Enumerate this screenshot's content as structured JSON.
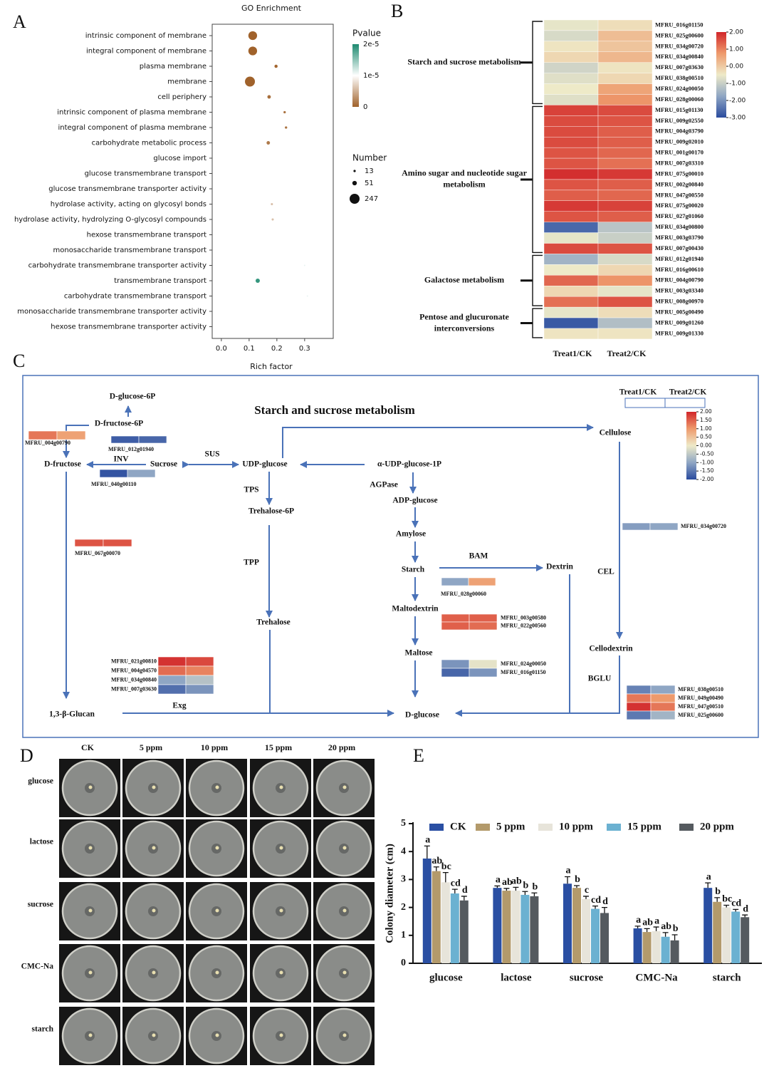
{
  "panel_labels": [
    "A",
    "B",
    "C",
    "D",
    "E"
  ],
  "chart_data": [
    {
      "type": "scatter",
      "title": "GO Enrichment",
      "x_label": "Rich factor",
      "categories": [
        "intrinsic component of membrane",
        "integral component of membrane",
        "plasma membrane",
        "membrane",
        "cell periphery",
        "intrinsic component of plasma membrane",
        "integral component of plasma membrane",
        "carbohydrate metabolic process",
        "glucose import",
        "glucose transmembrane transport",
        "glucose transmembrane transporter activity",
        "hydrolase activity, acting on glycosyl bonds",
        "hydrolase activity, hydrolyzing O-glycosyl compounds",
        "hexose transmembrane transport",
        "monosaccharide transmembrane transport",
        "carbohydrate transmembrane transporter activity",
        "transmembrane transport",
        "carbohydrate transmembrane transport",
        "monosaccharide transmembrane transporter activity",
        "hexose transmembrane transporter activity"
      ],
      "x": [
        0.113,
        0.113,
        0.197,
        0.103,
        0.172,
        0.228,
        0.233,
        0.169,
        0.369,
        0.364,
        0.344,
        0.182,
        0.185,
        0.323,
        0.318,
        0.3,
        0.131,
        0.31,
        0.323,
        0.323
      ],
      "size": [
        190,
        190,
        25,
        247,
        30,
        14,
        14,
        30,
        3,
        3,
        3,
        12,
        12,
        4,
        4,
        5,
        45,
        5,
        4,
        4
      ],
      "pvalue": [
        2e-08,
        2e-08,
        3e-07,
        1e-08,
        8e-07,
        1e-06,
        1e-06,
        1.5e-06,
        1e-05,
        1e-05,
        1e-05,
        6e-06,
        6e-06,
        1e-05,
        1e-05,
        1.1e-05,
        1.9e-05,
        1.1e-05,
        1e-05,
        1e-05
      ],
      "xlim": [
        -0.033,
        0.403
      ],
      "xticks": [
        {
          "value": 0,
          "label": "0.0"
        },
        0.1,
        0.2,
        0.3
      ],
      "color_legend": {
        "title": "Pvalue",
        "lim": [
          0,
          2e-05
        ],
        "colors": [
          "#a0622b",
          "#ffffff",
          "#1d8a70"
        ],
        "ticks": [
          {
            "value": 2e-05,
            "label": "2e-5"
          },
          {
            "value": 1e-05,
            "label": "1e-5"
          },
          0
        ]
      },
      "size_legend": {
        "title": "Number",
        "values": [
          13,
          51,
          247
        ]
      }
    },
    {
      "type": "heatmap",
      "columns": [
        "Treat1/CK",
        "Treat2/CK"
      ],
      "clim": [
        -3,
        2
      ],
      "colors": [
        "#2a4b9e",
        "#8fa6c4",
        "#eeeac8",
        "#ee9a6c",
        "#d1262a"
      ],
      "cticks": [
        {
          "value": 2,
          "label": "2.00"
        },
        {
          "value": 1,
          "label": "1.00"
        },
        {
          "value": 0,
          "label": "0.00"
        },
        {
          "value": -1,
          "label": "-1.00"
        },
        {
          "value": -2,
          "label": "-2.00"
        },
        {
          "value": -3,
          "label": "-3.00"
        }
      ],
      "groups": [
        {
          "name": [
            "Starch and sucrose metabolism"
          ],
          "genes": [
            {
              "label": "MFRU_016g01150",
              "values": [
                -0.6,
                -0.3
              ]
            },
            {
              "label": "MFRU_025g00600",
              "values": [
                -0.8,
                0.2
              ]
            },
            {
              "label": "MFRU_034g00720",
              "values": [
                -0.4,
                0.1
              ]
            },
            {
              "label": "MFRU_034g00840",
              "values": [
                -0.2,
                0.3
              ]
            },
            {
              "label": "MFRU_007g03630",
              "values": [
                -0.9,
                -0.4
              ]
            },
            {
              "label": "MFRU_038g00510",
              "values": [
                -0.7,
                -0.2
              ]
            },
            {
              "label": "MFRU_024g00050",
              "values": [
                -0.5,
                0.6
              ]
            },
            {
              "label": "MFRU_028g00060",
              "values": [
                -0.7,
                0.8
              ]
            }
          ]
        },
        {
          "name": [
            "Amino sugar and nucleotide sugar",
            "metabolism"
          ],
          "genes": [
            {
              "label": "MFRU_015g01130",
              "values": [
                1.7,
                1.6
              ]
            },
            {
              "label": "MFRU_009g02550",
              "values": [
                1.6,
                1.5
              ]
            },
            {
              "label": "MFRU_004g03790",
              "values": [
                1.6,
                1.4
              ]
            },
            {
              "label": "MFRU_009g02010",
              "values": [
                1.6,
                1.4
              ]
            },
            {
              "label": "MFRU_001g00170",
              "values": [
                1.5,
                1.3
              ]
            },
            {
              "label": "MFRU_007g03310",
              "values": [
                1.5,
                1.2
              ]
            },
            {
              "label": "MFRU_075g00010",
              "values": [
                1.9,
                1.8
              ]
            },
            {
              "label": "MFRU_002g00840",
              "values": [
                1.5,
                1.4
              ]
            },
            {
              "label": "MFRU_047g00550",
              "values": [
                1.4,
                1.3
              ]
            },
            {
              "label": "MFRU_075g00020",
              "values": [
                1.8,
                1.7
              ]
            },
            {
              "label": "MFRU_027g01060",
              "values": [
                1.5,
                1.4
              ]
            },
            {
              "label": "MFRU_034g00800",
              "values": [
                -2.6,
                -1.2
              ]
            },
            {
              "label": "MFRU_003g03790",
              "values": [
                -0.6,
                -1.0
              ]
            },
            {
              "label": "MFRU_007g00430",
              "values": [
                1.6,
                1.5
              ]
            }
          ]
        },
        {
          "name": [
            "Galactose metabolism"
          ],
          "genes": [
            {
              "label": "MFRU_012g01940",
              "values": [
                -1.5,
                -0.8
              ]
            },
            {
              "label": "MFRU_016g00610",
              "values": [
                -0.5,
                -0.2
              ]
            },
            {
              "label": "MFRU_004g00790",
              "values": [
                1.3,
                0.8
              ]
            },
            {
              "label": "MFRU_003g03340",
              "values": [
                -0.2,
                -0.6
              ]
            },
            {
              "label": "MFRU_008g00970",
              "values": [
                1.2,
                1.5
              ]
            }
          ]
        },
        {
          "name": [
            "Pentose and glucuronate",
            "interconversions"
          ],
          "genes": [
            {
              "label": "MFRU_005g00490",
              "values": [
                -0.6,
                -0.3
              ]
            },
            {
              "label": "MFRU_009g01260",
              "values": [
                -2.8,
                -1.3
              ]
            },
            {
              "label": "MFRU_009g01330",
              "values": [
                -0.4,
                -0.4
              ]
            }
          ]
        }
      ]
    },
    {
      "type": "bar",
      "y_label": "Colony diameter (cm)",
      "categories": [
        "glucose",
        "lactose",
        "sucrose",
        "CMC-Na",
        "starch"
      ],
      "ylim": [
        0,
        5
      ],
      "yticks": [
        0,
        1,
        2,
        3,
        4,
        5
      ],
      "series": [
        {
          "name": "CK",
          "color": "#2a4fa3",
          "values": [
            3.75,
            2.7,
            2.85,
            1.25,
            2.7
          ],
          "errors": [
            0.45,
            0.07,
            0.25,
            0.08,
            0.18
          ],
          "letters": [
            "a",
            "a",
            "a",
            "a",
            "a"
          ]
        },
        {
          "name": "5 ppm",
          "color": "#b39a6b",
          "values": [
            3.3,
            2.6,
            2.7,
            1.12,
            2.2
          ],
          "errors": [
            0.15,
            0.08,
            0.08,
            0.12,
            0.15
          ],
          "letters": [
            "ab",
            "ab",
            "b",
            "ab",
            "b"
          ]
        },
        {
          "name": "10 ppm",
          "color": "#e7e4da",
          "values": [
            2.9,
            2.6,
            2.3,
            1.15,
            2.0
          ],
          "errors": [
            0.35,
            0.12,
            0.1,
            0.15,
            0.08
          ],
          "letters": [
            "bc",
            "ab",
            "c",
            "a",
            "bc"
          ]
        },
        {
          "name": "15 ppm",
          "color": "#6bb1d1",
          "values": [
            2.5,
            2.45,
            1.95,
            0.95,
            1.85
          ],
          "errors": [
            0.15,
            0.12,
            0.1,
            0.15,
            0.08
          ],
          "letters": [
            "cd",
            "b",
            "cd",
            "ab",
            "cd"
          ]
        },
        {
          "name": "20 ppm",
          "color": "#555a5f",
          "values": [
            2.25,
            2.4,
            1.8,
            0.82,
            1.65
          ],
          "errors": [
            0.15,
            0.12,
            0.2,
            0.2,
            0.08
          ],
          "letters": [
            "d",
            "b",
            "d",
            "b",
            "d"
          ]
        }
      ]
    }
  ],
  "pathway": {
    "title": "Starch and sucrose metabolism",
    "columns": [
      "Treat1/CK",
      "Treat2/CK"
    ],
    "clim": [
      -2,
      2
    ],
    "colors": [
      "#2a4b9e",
      "#8fa6c4",
      "#eeeac8",
      "#ee9a6c",
      "#d1262a"
    ],
    "cticks": [
      {
        "value": 2,
        "label": "2.00"
      },
      {
        "value": 1.5,
        "label": "1.50"
      },
      {
        "value": 1,
        "label": "1.00"
      },
      {
        "value": 0.5,
        "label": "0.50"
      },
      {
        "value": 0,
        "label": "0.00"
      },
      {
        "value": -0.5,
        "label": "-0.50"
      },
      {
        "value": -1,
        "label": "-1.00"
      },
      {
        "value": -1.5,
        "label": "-1.50"
      },
      {
        "value": -2,
        "label": "-2.00"
      }
    ],
    "nodes": [
      "D-glucose-6P",
      "D-fructose-6P",
      "D-fructose",
      "Sucrose",
      "UDP-glucose",
      "α-UDP-glucose-1P",
      "Cellulose",
      "Trehalose-6P",
      "ADP-glucose",
      "Amylose",
      "Starch",
      "Dextrin",
      "Maltodextrin",
      "Maltose",
      "Trehalose",
      "Cellodextrin",
      "1,3-β-Glucan",
      "D-glucose"
    ],
    "enzymes": [
      "INV",
      "SUS",
      "TPS",
      "TPP",
      "AGPase",
      "BAM",
      "CEL",
      "BGLU",
      "Exg"
    ],
    "gene_boxes": [
      [
        {
          "label": "MFRU_004g00790",
          "values": [
            1.3,
            0.9
          ]
        }
      ],
      [
        {
          "label": "MFRU_012g01940",
          "values": [
            -1.8,
            -1.7
          ]
        }
      ],
      [
        {
          "label": "MFRU_040g00110",
          "values": [
            -1.9,
            -1.0
          ]
        }
      ],
      [
        {
          "label": "MFRU_067g00070",
          "values": [
            1.6,
            1.6
          ]
        }
      ],
      [
        {
          "label": "MFRU_034g00720",
          "values": [
            -1.1,
            -1.0
          ]
        }
      ],
      [
        {
          "label": "MFRU_028g00060",
          "values": [
            -1.0,
            0.9
          ]
        }
      ],
      [
        {
          "label": "MFRU_003g00580",
          "values": [
            1.5,
            1.5
          ]
        },
        {
          "label": "MFRU_022g00560",
          "values": [
            1.5,
            1.4
          ]
        }
      ],
      [
        {
          "label": "MFRU_024g00050",
          "values": [
            -1.2,
            -0.1
          ]
        },
        {
          "label": "MFRU_016g01150",
          "values": [
            -1.7,
            -1.2
          ]
        }
      ],
      [
        {
          "label": "MFRU_021g00810",
          "values": [
            1.9,
            1.7
          ]
        },
        {
          "label": "MFRU_004g04570",
          "values": [
            1.4,
            1.2
          ]
        },
        {
          "label": "MFRU_034g00840",
          "values": [
            -1.0,
            -0.6
          ]
        },
        {
          "label": "MFRU_007g03630",
          "values": [
            -1.6,
            -1.2
          ]
        }
      ],
      [
        {
          "label": "MFRU_038g00510",
          "values": [
            -1.4,
            -1.0
          ]
        },
        {
          "label": "MFRU_049g00490",
          "values": [
            1.3,
            1.0
          ]
        },
        {
          "label": "MFRU_047g00510",
          "values": [
            1.9,
            1.3
          ]
        },
        {
          "label": "MFRU_025g00600",
          "values": [
            -1.5,
            -0.8
          ]
        }
      ]
    ]
  },
  "photos": {
    "columns": [
      "CK",
      "5 ppm",
      "10 ppm",
      "15 ppm",
      "20 ppm"
    ],
    "rows": [
      "glucose",
      "lactose",
      "sucrose",
      "CMC-Na",
      "starch"
    ]
  }
}
